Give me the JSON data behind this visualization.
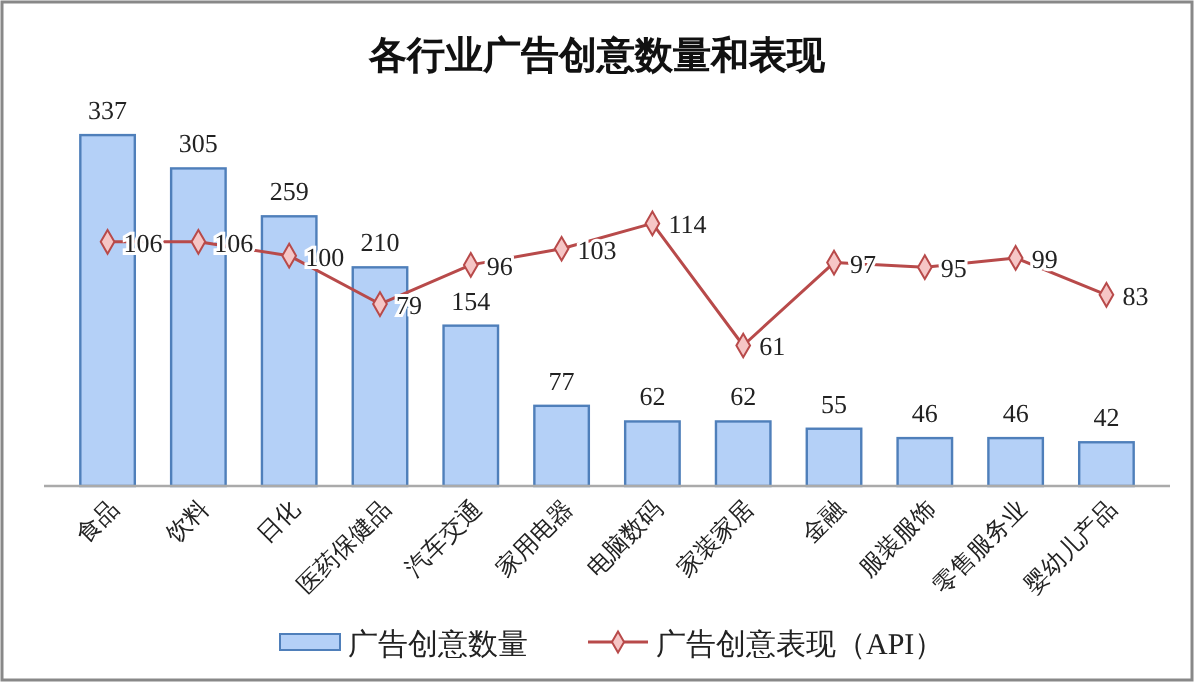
{
  "chart_data": {
    "type": "bar",
    "title": "各行业广告创意数量和表现",
    "categories": [
      "食品",
      "饮料",
      "日化",
      "医药保健品",
      "汽车交通",
      "家用电器",
      "电脑数码",
      "家装家居",
      "金融",
      "服装服饰",
      "零售服务业",
      "婴幼儿产品"
    ],
    "series": [
      {
        "name": "广告创意数量",
        "color": "#b4d0f7",
        "values": [
          337,
          305,
          259,
          210,
          154,
          77,
          62,
          62,
          55,
          46,
          46,
          42
        ]
      },
      {
        "name": "广告创意表现（API）",
        "type": "line",
        "axis": "y2",
        "color": "#b84a4a",
        "marker": "diamond",
        "values": [
          106,
          106,
          100,
          79,
          96,
          103,
          114,
          61,
          97,
          95,
          99,
          83
        ]
      }
    ],
    "tick_labels": "x",
    "data_labels": true,
    "legend": "bottom",
    "grid": false
  }
}
